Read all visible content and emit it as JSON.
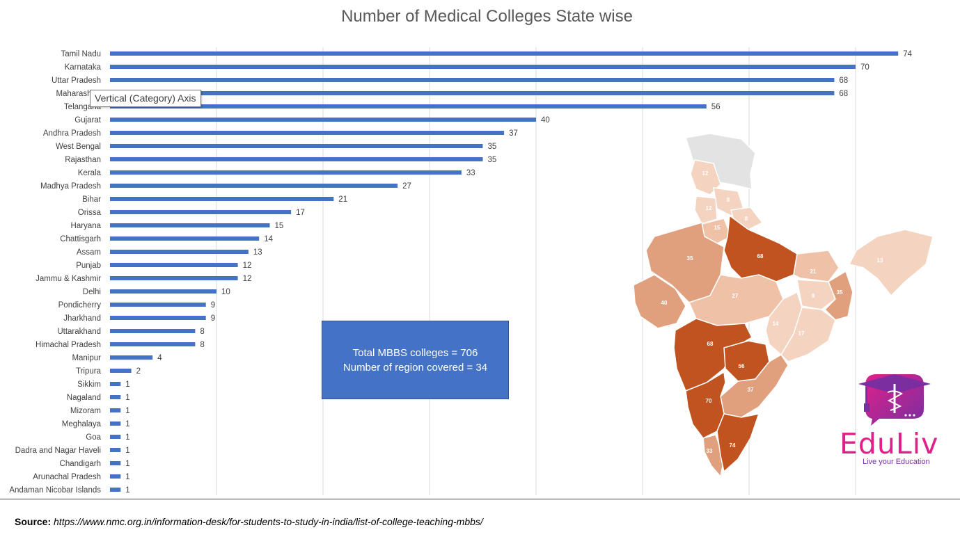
{
  "chart_data": {
    "type": "bar",
    "orientation": "horizontal",
    "title": "Number of Medical Colleges State wise",
    "categories": [
      "Tamil Nadu",
      "Karnataka",
      "Uttar Pradesh",
      "Maharashtra",
      "Telangana",
      "Gujarat",
      "Andhra Pradesh",
      "West Bengal",
      "Rajasthan",
      "Kerala",
      "Madhya Pradesh",
      "Bihar",
      "Orissa",
      "Haryana",
      "Chattisgarh",
      "Assam",
      "Punjab",
      "Jammu & Kashmir",
      "Delhi",
      "Pondicherry",
      "Jharkhand",
      "Uttarakhand",
      "Himachal Pradesh",
      "Manipur",
      "Tripura",
      "Sikkim",
      "Nagaland",
      "Mizoram",
      "Meghalaya",
      "Goa",
      "Dadra and Nagar Haveli",
      "Chandigarh",
      "Arunachal Pradesh",
      "Andaman Nicobar Islands"
    ],
    "values": [
      74,
      70,
      68,
      68,
      56,
      40,
      37,
      35,
      35,
      33,
      27,
      21,
      17,
      15,
      14,
      13,
      12,
      12,
      10,
      9,
      9,
      8,
      8,
      4,
      2,
      1,
      1,
      1,
      1,
      1,
      1,
      1,
      1,
      1
    ],
    "xlim": [
      0,
      75
    ],
    "grid": true,
    "bar_color": "#4472c4",
    "data_labels": true
  },
  "tooltip": "Vertical (Category) Axis",
  "summary": {
    "line1": "Total MBBS colleges = 706",
    "line2": "Number of region covered = 34"
  },
  "map": {
    "labels": [
      {
        "state": "Jammu & Kashmir",
        "value": "12"
      },
      {
        "state": "Himachal Pradesh",
        "value": "8"
      },
      {
        "state": "Punjab",
        "value": "12"
      },
      {
        "state": "Uttarakhand",
        "value": "8"
      },
      {
        "state": "Haryana",
        "value": "15"
      },
      {
        "state": "Rajasthan",
        "value": "35"
      },
      {
        "state": "Uttar Pradesh",
        "value": "68"
      },
      {
        "state": "Bihar",
        "value": "21"
      },
      {
        "state": "Assam",
        "value": "13"
      },
      {
        "state": "Gujarat",
        "value": "40"
      },
      {
        "state": "Madhya Pradesh",
        "value": "27"
      },
      {
        "state": "Jharkhand",
        "value": "9"
      },
      {
        "state": "West Bengal",
        "value": "35"
      },
      {
        "state": "Chattisgarh",
        "value": "14"
      },
      {
        "state": "Orissa",
        "value": "17"
      },
      {
        "state": "Maharashtra",
        "value": "68"
      },
      {
        "state": "Telangana",
        "value": "56"
      },
      {
        "state": "Andhra Pradesh",
        "value": "37"
      },
      {
        "state": "Karnataka",
        "value": "70"
      },
      {
        "state": "Tamil Nadu",
        "value": "74"
      },
      {
        "state": "Kerala",
        "value": "33"
      }
    ],
    "colors": {
      "dark": "#c0531f",
      "mid": "#e0a07e",
      "light": "#f4d3c0",
      "none": "#e3e3e3"
    }
  },
  "source": {
    "label": "Source:",
    "url": " https://www.nmc.org.in/information-desk/for-students-to-study-in-india/list-of-college-teaching-mbbs/"
  },
  "logo": {
    "name": "EduLiv",
    "tagline": "Live your Education"
  }
}
